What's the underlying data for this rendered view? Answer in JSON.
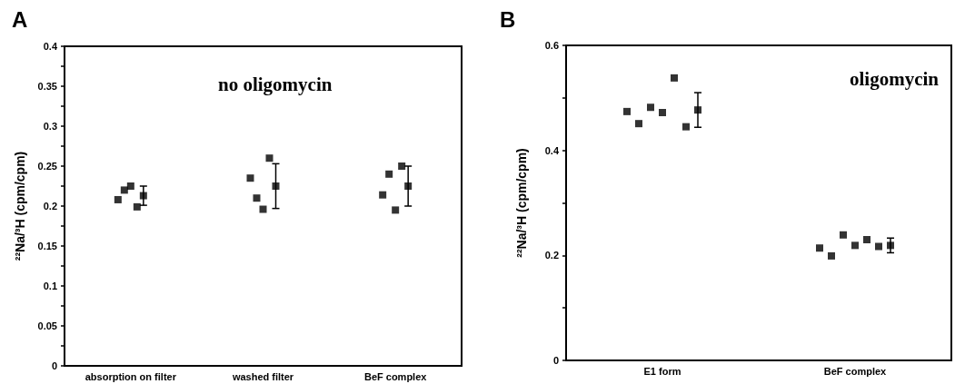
{
  "chart_data": [
    {
      "type": "scatter",
      "title": "A",
      "ylabel": "²²Na/³H (cpm/cpm)",
      "annotations": [
        "no oligomycin"
      ],
      "categories": [
        "absorption on filter",
        "washed filter",
        "BeF complex"
      ],
      "ylim": [
        0,
        0.4
      ],
      "yticks": [
        0,
        {
          "value": 0.025,
          "label": null
        },
        0.05,
        {
          "value": 0.075,
          "label": null
        },
        0.1,
        {
          "value": 0.125,
          "label": null
        },
        0.15,
        {
          "value": 0.175,
          "label": null
        },
        0.2,
        {
          "value": 0.225,
          "label": null
        },
        0.25,
        {
          "value": 0.275,
          "label": null
        },
        0.3,
        {
          "value": 0.325,
          "label": null
        },
        0.35,
        {
          "value": 0.375,
          "label": null
        },
        0.4
      ],
      "grid": false,
      "marker": "square",
      "series": [
        {
          "color": "#000000",
          "values": [
            0.208,
            0.235,
            0.214
          ]
        },
        {
          "color": "#000000",
          "values": [
            0.22,
            0.21,
            0.24
          ]
        },
        {
          "color": "#000000",
          "values": [
            0.225,
            0.196,
            0.195
          ]
        },
        {
          "color": "#000000",
          "values": [
            0.199,
            0.26,
            0.25
          ]
        },
        {
          "color": "#000000",
          "values": [
            0.213,
            0.225,
            0.225
          ],
          "errors": [
            0.012,
            0.028,
            0.025
          ]
        }
      ]
    },
    {
      "type": "scatter",
      "title": "B",
      "ylabel": "²²Na/³H (cpm/cpm)",
      "annotations": [
        "oligomycin"
      ],
      "categories": [
        "E1 form",
        "BeF complex"
      ],
      "ylim": [
        0,
        0.6
      ],
      "yticks": [
        0,
        {
          "value": 0.1,
          "label": null
        },
        0.2,
        {
          "value": 0.3,
          "label": null
        },
        0.4,
        {
          "value": 0.5,
          "label": null
        },
        0.6
      ],
      "grid": false,
      "marker": "square",
      "series": [
        {
          "color": "#000000",
          "values": [
            0.474,
            0.214
          ]
        },
        {
          "color": "#000000",
          "values": [
            0.451,
            0.199
          ]
        },
        {
          "color": "#000000",
          "values": [
            0.482,
            0.239
          ]
        },
        {
          "color": "#000000",
          "values": [
            0.472,
            0.219
          ]
        },
        {
          "color": "#000000",
          "values": [
            0.538,
            0.23
          ]
        },
        {
          "color": "#000000",
          "values": [
            0.445,
            0.217
          ]
        },
        {
          "color": "#000000",
          "values": [
            0.477,
            0.219
          ],
          "errors": [
            0.033,
            0.014
          ]
        }
      ]
    }
  ]
}
